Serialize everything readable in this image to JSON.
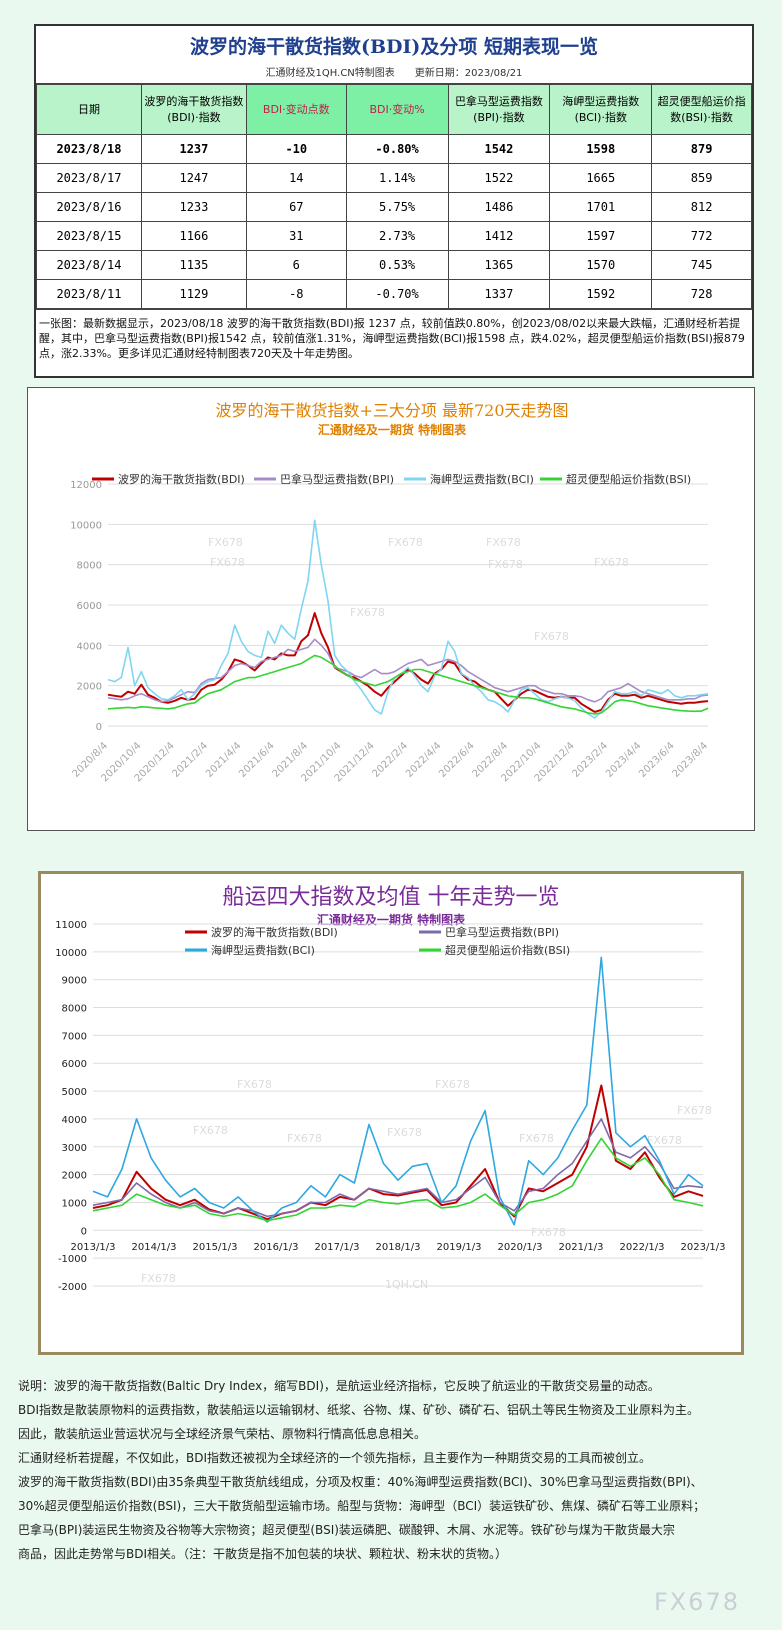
{
  "summary": {
    "title": "波罗的海干散货指数(BDI)及分项 短期表现一览",
    "subtitle": "汇通财经及1QH.CN特制图表　　更新日期：2023/08/21",
    "headers": [
      "日期",
      "波罗的海干散货指数(BDI)·指数",
      "BDI·变动点数",
      "BDI·变动%",
      "巴拿马型运费指数(BPI)·指数",
      "海岬型运费指数(BCI)·指数",
      "超灵便型船运价指数(BSI)·指数"
    ],
    "rows": [
      [
        "2023/8/18",
        "1237",
        "-10",
        "-0.80%",
        "1542",
        "1598",
        "879"
      ],
      [
        "2023/8/17",
        "1247",
        "14",
        "1.14%",
        "1522",
        "1665",
        "859"
      ],
      [
        "2023/8/16",
        "1233",
        "67",
        "5.75%",
        "1486",
        "1701",
        "812"
      ],
      [
        "2023/8/15",
        "1166",
        "31",
        "2.73%",
        "1412",
        "1597",
        "772"
      ],
      [
        "2023/8/14",
        "1135",
        "6",
        "0.53%",
        "1365",
        "1570",
        "745"
      ],
      [
        "2023/8/11",
        "1129",
        "-8",
        "-0.70%",
        "1337",
        "1592",
        "728"
      ]
    ],
    "note": "一张图：最新数据显示，2023/08/18 波罗的海干散货指数(BDI)报 1237 点，较前值跌0.80%，创2023/08/02以来最大跌幅，汇通财经析若提醒，其中，巴拿马型运费指数(BPI)报1542 点，较前值涨1.31%，海岬型运费指数(BCI)报1598 点，跌4.02%，超灵便型船运价指数(BSI)报879 点，涨2.33%。更多详见汇通财经特制图表720天及十年走势图。"
  },
  "chart_data": [
    {
      "type": "line",
      "title": "波罗的海干散货指数+三大分项  最新720天走势图",
      "subtitle": "汇通财经及一期货  特制图表",
      "x_tick_labels": [
        "2020/8/4",
        "2020/10/4",
        "2020/12/4",
        "2021/2/4",
        "2021/4/4",
        "2021/6/4",
        "2021/8/4",
        "2021/10/4",
        "2021/12/4",
        "2022/2/4",
        "2022/4/4",
        "2022/6/4",
        "2022/8/4",
        "2022/10/4",
        "2022/12/4",
        "2023/2/4",
        "2023/4/4",
        "2023/6/4",
        "2023/8/4"
      ],
      "ylim": [
        0,
        12000
      ],
      "y_ticks": [
        0,
        2000,
        4000,
        6000,
        8000,
        10000,
        12000
      ],
      "grid": true,
      "legend_position": "top",
      "watermarks": [
        "FX678",
        "FX678",
        "FX678",
        "FX678",
        "FX678",
        "FX678",
        "FX678",
        "FX678"
      ],
      "x_points": [
        0,
        2,
        4,
        6,
        8,
        10,
        12,
        14,
        16,
        18,
        20,
        22,
        24,
        26,
        28,
        30,
        32,
        34,
        36,
        38,
        40,
        42,
        44,
        46,
        48,
        50,
        52,
        54,
        56,
        58,
        60,
        62,
        64,
        66,
        68,
        70,
        72,
        74,
        76,
        78,
        80,
        82,
        84,
        86,
        88,
        90,
        92,
        94,
        96,
        98,
        100,
        102,
        104,
        106,
        108,
        110,
        112,
        114,
        116,
        118,
        120,
        122,
        124,
        126,
        128,
        130,
        132,
        134,
        136,
        138,
        140,
        142,
        144,
        146,
        148,
        150,
        152,
        154,
        156,
        158,
        160,
        162,
        164,
        166,
        168,
        170,
        172,
        174,
        176,
        178,
        180
      ],
      "series": [
        {
          "name": "波罗的海干散货指数(BDI)",
          "color": "#c00000",
          "values": [
            1550,
            1500,
            1450,
            1700,
            1600,
            2050,
            1550,
            1400,
            1200,
            1150,
            1250,
            1400,
            1300,
            1350,
            1800,
            2000,
            2050,
            2300,
            2700,
            3300,
            3200,
            3000,
            2750,
            3100,
            3400,
            3300,
            3600,
            3500,
            3500,
            4200,
            4500,
            5600,
            4600,
            3900,
            2900,
            2700,
            2500,
            2400,
            2200,
            2000,
            1700,
            1500,
            1900,
            2200,
            2500,
            2800,
            2600,
            2300,
            2100,
            2600,
            2800,
            3200,
            3100,
            2600,
            2300,
            2200,
            1950,
            1800,
            1700,
            1350,
            1000,
            1300,
            1600,
            1800,
            1750,
            1600,
            1450,
            1400,
            1450,
            1400,
            1400,
            1100,
            900,
            700,
            800,
            1300,
            1600,
            1500,
            1500,
            1550,
            1400,
            1500,
            1400,
            1300,
            1200,
            1150,
            1100,
            1150,
            1150,
            1200,
            1237
          ]
        },
        {
          "name": "巴拿马型运费指数(BPI)",
          "color": "#a78bc8",
          "values": [
            1400,
            1350,
            1300,
            1350,
            1500,
            1600,
            1450,
            1300,
            1200,
            1250,
            1400,
            1550,
            1700,
            1650,
            2100,
            2300,
            2350,
            2400,
            2700,
            3000,
            3100,
            3000,
            2900,
            3200,
            3300,
            3400,
            3500,
            3800,
            3700,
            3800,
            3900,
            4300,
            4000,
            3600,
            2900,
            2800,
            2700,
            2500,
            2400,
            2600,
            2800,
            2600,
            2600,
            2700,
            2900,
            3100,
            3200,
            3300,
            3000,
            3100,
            3200,
            3300,
            3200,
            3000,
            2700,
            2500,
            2300,
            2100,
            1900,
            1800,
            1700,
            1800,
            1900,
            2000,
            2000,
            1800,
            1700,
            1600,
            1600,
            1500,
            1500,
            1450,
            1300,
            1200,
            1350,
            1700,
            1800,
            1900,
            2100,
            1900,
            1700,
            1600,
            1500,
            1400,
            1300,
            1300,
            1300,
            1350,
            1350,
            1500,
            1542
          ]
        },
        {
          "name": "海岬型运费指数(BCI)",
          "color": "#7fd6f0",
          "values": [
            2300,
            2200,
            2400,
            3900,
            2000,
            2700,
            1900,
            1600,
            1350,
            1300,
            1500,
            1800,
            1300,
            1600,
            2000,
            2200,
            2300,
            3000,
            3600,
            5000,
            4200,
            3700,
            3500,
            3400,
            4700,
            4100,
            5000,
            4600,
            4300,
            5800,
            7200,
            10200,
            8000,
            6200,
            3500,
            3000,
            2700,
            2200,
            1800,
            1300,
            800,
            600,
            1700,
            2400,
            2600,
            2900,
            2500,
            2000,
            1700,
            2500,
            2800,
            4200,
            3700,
            2600,
            2400,
            2000,
            1700,
            1300,
            1200,
            1000,
            700,
            1300,
            1800,
            1900,
            1600,
            1300,
            1200,
            1350,
            1450,
            1400,
            1250,
            900,
            600,
            400,
            700,
            1200,
            1700,
            1600,
            1600,
            1700,
            1500,
            1800,
            1700,
            1600,
            1800,
            1500,
            1400,
            1500,
            1500,
            1550,
            1598
          ]
        },
        {
          "name": "超灵便型船运价指数(BSI)",
          "color": "#33d433",
          "values": [
            850,
            880,
            900,
            920,
            900,
            950,
            930,
            900,
            880,
            850,
            900,
            1000,
            1100,
            1150,
            1400,
            1600,
            1700,
            1800,
            2000,
            2200,
            2300,
            2400,
            2400,
            2500,
            2600,
            2700,
            2800,
            2900,
            3000,
            3100,
            3300,
            3500,
            3400,
            3200,
            3000,
            2700,
            2500,
            2300,
            2200,
            2100,
            2000,
            2100,
            2200,
            2400,
            2600,
            2700,
            2800,
            2800,
            2700,
            2600,
            2500,
            2400,
            2300,
            2200,
            2100,
            2000,
            1900,
            1800,
            1700,
            1600,
            1500,
            1450,
            1400,
            1400,
            1350,
            1250,
            1150,
            1050,
            950,
            900,
            850,
            750,
            650,
            600,
            650,
            900,
            1200,
            1300,
            1250,
            1200,
            1100,
            1000,
            950,
            900,
            850,
            800,
            760,
            740,
            730,
            740,
            879
          ]
        }
      ]
    },
    {
      "type": "line",
      "title": "船运四大指数及均值 十年走势一览",
      "subtitle": "汇通财经及一期货 特制图表",
      "x_tick_labels": [
        "2013/1/3",
        "2014/1/3",
        "2015/1/3",
        "2016/1/3",
        "2017/1/3",
        "2018/1/3",
        "2019/1/3",
        "2020/1/3",
        "2021/1/3",
        "2022/1/3",
        "2023/1/3"
      ],
      "ylim": [
        -2000,
        11000
      ],
      "y_ticks": [
        -2000,
        -1000,
        0,
        1000,
        2000,
        3000,
        4000,
        5000,
        6000,
        7000,
        8000,
        9000,
        10000,
        11000
      ],
      "grid": true,
      "legend_position": "top",
      "watermarks": [
        "FX678",
        "FX678",
        "FX678",
        "FX678",
        "FX678",
        "FX678",
        "FX678",
        "FX678",
        "FX678",
        "FX678",
        "1QH.CN"
      ],
      "x_points": [
        0,
        0.25,
        0.5,
        0.75,
        1,
        1.25,
        1.5,
        1.75,
        2,
        2.25,
        2.5,
        2.75,
        3,
        3.25,
        3.5,
        3.75,
        4,
        4.25,
        4.5,
        4.75,
        5,
        5.25,
        5.5,
        5.75,
        6,
        6.25,
        6.5,
        6.75,
        7,
        7.25,
        7.5,
        7.75,
        8,
        8.25,
        8.5,
        8.75,
        9,
        9.25,
        9.5,
        9.75,
        10,
        10.25,
        10.5
      ],
      "series": [
        {
          "name": "波罗的海干散货指数(BDI)",
          "color": "#c00000",
          "values": [
            800,
            900,
            1100,
            2100,
            1500,
            1100,
            900,
            1100,
            750,
            600,
            800,
            600,
            400,
            600,
            700,
            1000,
            900,
            1200,
            1100,
            1500,
            1300,
            1250,
            1350,
            1450,
            900,
            1000,
            1600,
            2200,
            1000,
            500,
            1500,
            1400,
            1700,
            2000,
            3000,
            5200,
            2500,
            2200,
            2800,
            1900,
            1200,
            1400,
            1237
          ]
        },
        {
          "name": "巴拿马型运费指数(BPI)",
          "color": "#7d6aa8",
          "values": [
            900,
            1000,
            1100,
            1700,
            1300,
            1000,
            800,
            1000,
            700,
            600,
            800,
            700,
            500,
            600,
            700,
            1000,
            1000,
            1300,
            1100,
            1500,
            1400,
            1300,
            1400,
            1500,
            1000,
            1100,
            1500,
            1900,
            1000,
            700,
            1400,
            1500,
            2000,
            2400,
            3200,
            4000,
            2800,
            2600,
            3000,
            2400,
            1500,
            1600,
            1542
          ]
        },
        {
          "name": "海岬型运费指数(BCI)",
          "color": "#2fa7e0",
          "values": [
            1400,
            1200,
            2200,
            4000,
            2600,
            1800,
            1200,
            1500,
            1000,
            800,
            1200,
            700,
            300,
            800,
            1000,
            1600,
            1200,
            2000,
            1700,
            3800,
            2400,
            1800,
            2300,
            2400,
            1000,
            1600,
            3200,
            4300,
            1200,
            200,
            2500,
            2000,
            2600,
            3600,
            4500,
            9800,
            3500,
            3000,
            3400,
            2500,
            1300,
            2000,
            1598
          ]
        },
        {
          "name": "超灵便型船运价指数(BSI)",
          "color": "#33d433",
          "values": [
            700,
            800,
            900,
            1300,
            1100,
            900,
            800,
            900,
            600,
            500,
            600,
            500,
            350,
            450,
            550,
            800,
            800,
            900,
            850,
            1100,
            1000,
            950,
            1050,
            1100,
            800,
            850,
            1000,
            1300,
            900,
            550,
            1000,
            1100,
            1300,
            1600,
            2500,
            3300,
            2600,
            2300,
            2600,
            2000,
            1100,
            1000,
            879
          ]
        }
      ]
    }
  ],
  "description": [
    "说明：波罗的海干散货指数(Baltic Dry Index，缩写BDI)，是航运业经济指标，它反映了航运业的干散货交易量的动态。",
    "BDI指数是散装原物料的运费指数，散装船运以运输钢材、纸浆、谷物、煤、矿砂、磷矿石、铝矾土等民生物资及工业原料为主。",
    "因此，散装航运业营运状况与全球经济景气荣枯、原物料行情高低息息相关。",
    "汇通财经析若提醒，不仅如此，BDI指数还被视为全球经济的一个领先指标，且主要作为一种期货交易的工具而被创立。",
    "波罗的海干散货指数(BDI)由35条典型干散货航线组成，分项及权重：40%海岬型运费指数(BCI)、30%巴拿马型运费指数(BPI)、",
    "30%超灵便型船运价指数(BSI)，三大干散货船型运输市场。船型与货物：海岬型（BCI）装运铁矿砂、焦煤、磷矿石等工业原料；",
    "巴拿马(BPI)装运民生物资及谷物等大宗物资；超灵便型(BSI)装运磷肥、碳酸钾、木屑、水泥等。铁矿砂与煤为干散货最大宗",
    "商品，因此走势常与BDI相关。（注：干散货是指不加包装的块状、颗粒状、粉末状的货物。）"
  ],
  "footer_logo": "FX678",
  "colors": {
    "title_blue": "#1f3f8f",
    "chart1_title": "#e08000",
    "chart2_title": "#7a2b9a"
  }
}
